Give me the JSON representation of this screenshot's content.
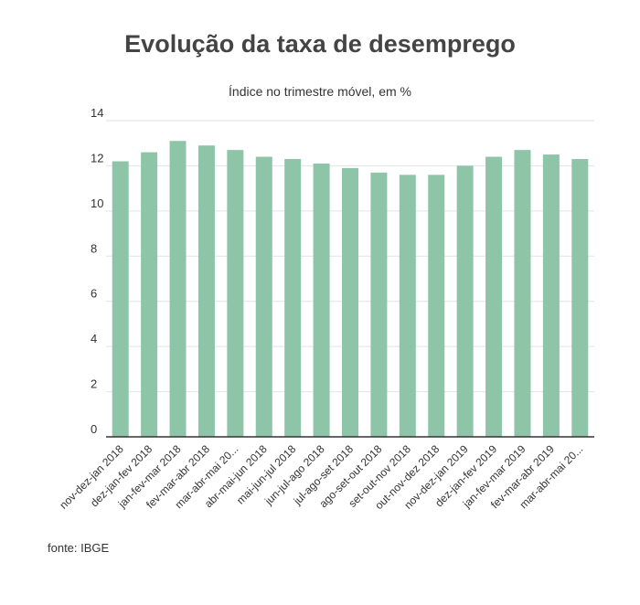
{
  "chart_data": {
    "type": "bar",
    "title": "Evolução da taxa de desemprego",
    "subtitle": "Índice no trimestre móvel, em %",
    "source": "fonte: IBGE",
    "categories": [
      "nov-dez-jan 2018",
      "dez-jan-fev 2018",
      "jan-fev-mar 2018",
      "fev-mar-abr 2018",
      "mar-abr-mai 20...",
      "abr-mai-jun 2018",
      "mai-jun-jul 2018",
      "jun-jul-ago 2018",
      "jul-ago-set 2018",
      "ago-set-out 2018",
      "set-out-nov 2018",
      "out-nov-dez 2018",
      "nov-dez-jan 2019",
      "dez-jan-fev 2019",
      "jan-fev-mar 2019",
      "fev-mar-abr 2019",
      "mar-abr-mai 20..."
    ],
    "values": [
      12.2,
      12.6,
      13.1,
      12.9,
      12.7,
      12.4,
      12.3,
      12.1,
      11.9,
      11.7,
      11.6,
      11.6,
      12.0,
      12.4,
      12.7,
      12.5,
      12.3
    ],
    "ylim": [
      0,
      14
    ],
    "yticks": [
      0,
      2,
      4,
      6,
      8,
      10,
      12,
      14
    ],
    "grid": true,
    "bar_color": "#8ec5a8",
    "legend": "none"
  }
}
